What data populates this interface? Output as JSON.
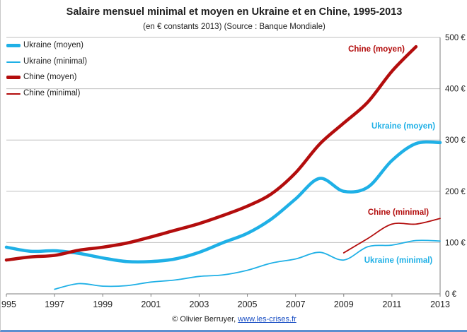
{
  "chart_data": {
    "type": "line",
    "title": "Salaire mensuel minimal et moyen en Ukraine et en Chine, 1995-2013",
    "subtitle": "(en € constants 2013) (Source : Banque Mondiale)",
    "xlabel": "",
    "ylabel": "",
    "xlim": [
      1995,
      2013
    ],
    "ylim": [
      0,
      500
    ],
    "x_ticks": [
      1995,
      1997,
      1999,
      2001,
      2003,
      2005,
      2007,
      2009,
      2011,
      2013
    ],
    "x_tick_labels": [
      "1995",
      "1997",
      "1999",
      "2001",
      "2003",
      "2005",
      "2007",
      "2009",
      "2011",
      "2013"
    ],
    "y_ticks": [
      0,
      100,
      200,
      300,
      400,
      500
    ],
    "y_tick_labels": [
      "0 €",
      "100 €",
      "200 €",
      "300 €",
      "400 €",
      "500 €"
    ],
    "y_axis_side": "right",
    "grid": "horizontal",
    "legend_placement": "top-left",
    "series": [
      {
        "name": "Ukraine (moyen)",
        "color": "#1fb0e6",
        "style": "thick",
        "x": [
          1995,
          1996,
          1997,
          1998,
          1999,
          2000,
          2001,
          2002,
          2003,
          2004,
          2005,
          2006,
          2007,
          2008,
          2009,
          2010,
          2011,
          2012,
          2013
        ],
        "y": [
          91,
          83,
          84,
          79,
          70,
          63,
          63,
          68,
          81,
          100,
          118,
          146,
          185,
          225,
          200,
          208,
          260,
          293,
          295
        ],
        "annotation": "Ukraine (moyen)"
      },
      {
        "name": "Ukraine (minimal)",
        "color": "#1fb0e6",
        "style": "thin",
        "x": [
          1997,
          1998,
          1999,
          2000,
          2001,
          2002,
          2003,
          2004,
          2005,
          2006,
          2007,
          2008,
          2009,
          2010,
          2011,
          2012,
          2013
        ],
        "y": [
          9,
          20,
          15,
          16,
          23,
          27,
          34,
          37,
          46,
          60,
          68,
          81,
          66,
          92,
          95,
          104,
          103
        ],
        "annotation": "Ukraine (minimal)"
      },
      {
        "name": "Chine (moyen)",
        "color": "#b30d0d",
        "style": "thick",
        "x": [
          1995,
          1996,
          1997,
          1998,
          1999,
          2000,
          2001,
          2002,
          2003,
          2004,
          2005,
          2006,
          2007,
          2008,
          2009,
          2010,
          2011,
          2012
        ],
        "y": [
          66,
          72,
          75,
          85,
          91,
          99,
          111,
          124,
          137,
          153,
          171,
          195,
          236,
          292,
          333,
          374,
          434,
          482
        ],
        "annotation": "Chine (moyen)"
      },
      {
        "name": "Chine (minimal)",
        "color": "#b30d0d",
        "style": "thin",
        "x": [
          2009,
          2010,
          2011,
          2012,
          2013
        ],
        "y": [
          80,
          108,
          136,
          136,
          147
        ],
        "annotation": "Chine (minimal)"
      }
    ]
  },
  "credit": {
    "prefix": "© Olivier Berruyer, ",
    "link": "www.les-crises.fr"
  }
}
